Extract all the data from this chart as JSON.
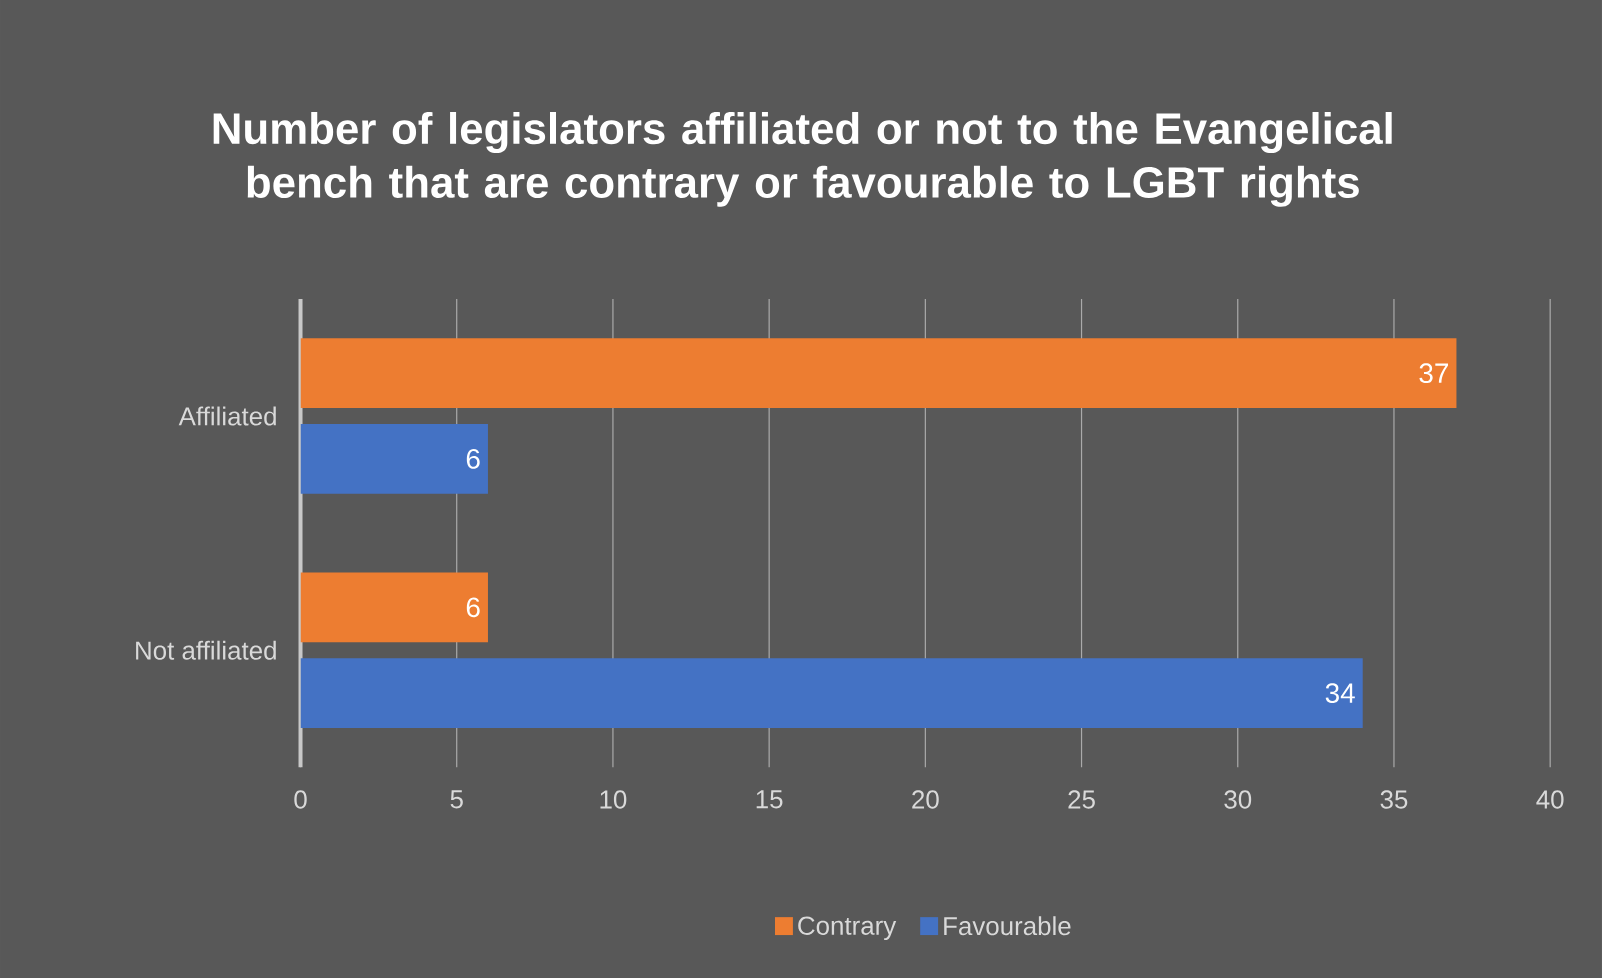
{
  "chart_data": {
    "type": "bar",
    "orientation": "horizontal",
    "title": "Number of legislators affiliated or not to the Evangelical bench that are contrary or favourable to LGBT rights",
    "categories": [
      "Affiliated",
      "Not affiliated"
    ],
    "series": [
      {
        "name": "Contrary",
        "color": "#ed7d31",
        "values": [
          37,
          6
        ]
      },
      {
        "name": "Favourable",
        "color": "#4472c4",
        "values": [
          6,
          34
        ]
      }
    ],
    "xlim": [
      0,
      40
    ],
    "xticks": [
      0,
      5,
      10,
      15,
      20,
      25,
      30,
      35,
      40
    ],
    "grid": "x",
    "legend": "bottom",
    "data_labels": true
  }
}
